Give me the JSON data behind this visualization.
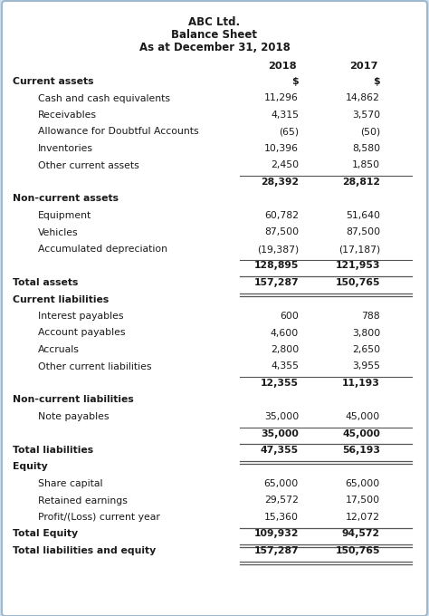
{
  "title_lines": [
    "ABC Ltd.",
    "Balance Sheet",
    "As at December 31, 2018"
  ],
  "rows": [
    {
      "label": "Current assets",
      "val2018": "",
      "val2017": "",
      "style": "section_header",
      "indent": 0
    },
    {
      "label": "Cash and cash equivalents",
      "val2018": "11,296",
      "val2017": "14,862",
      "style": "normal",
      "indent": 1
    },
    {
      "label": "Receivables",
      "val2018": "4,315",
      "val2017": "3,570",
      "style": "normal",
      "indent": 1
    },
    {
      "label": "Allowance for Doubtful Accounts",
      "val2018": "(65)",
      "val2017": "(50)",
      "style": "normal",
      "indent": 1
    },
    {
      "label": "Inventories",
      "val2018": "10,396",
      "val2017": "8,580",
      "style": "normal",
      "indent": 1
    },
    {
      "label": "Other current assets",
      "val2018": "2,450",
      "val2017": "1,850",
      "style": "normal",
      "indent": 1
    },
    {
      "label": "",
      "val2018": "28,392",
      "val2017": "28,812",
      "style": "subtotal",
      "indent": 0
    },
    {
      "label": "Non-current assets",
      "val2018": "",
      "val2017": "",
      "style": "section_header",
      "indent": 0
    },
    {
      "label": "Equipment",
      "val2018": "60,782",
      "val2017": "51,640",
      "style": "normal",
      "indent": 1
    },
    {
      "label": "Vehicles",
      "val2018": "87,500",
      "val2017": "87,500",
      "style": "normal",
      "indent": 1
    },
    {
      "label": "Accumulated depreciation",
      "val2018": "(19,387)",
      "val2017": "(17,187)",
      "style": "normal",
      "indent": 1
    },
    {
      "label": "",
      "val2018": "128,895",
      "val2017": "121,953",
      "style": "subtotal",
      "indent": 0
    },
    {
      "label": "Total assets",
      "val2018": "157,287",
      "val2017": "150,765",
      "style": "total",
      "indent": 0
    },
    {
      "label": "Current liabilities",
      "val2018": "",
      "val2017": "",
      "style": "section_header",
      "indent": 0
    },
    {
      "label": "Interest payables",
      "val2018": "600",
      "val2017": "788",
      "style": "normal",
      "indent": 1
    },
    {
      "label": "Account payables",
      "val2018": "4,600",
      "val2017": "3,800",
      "style": "normal",
      "indent": 1
    },
    {
      "label": "Accruals",
      "val2018": "2,800",
      "val2017": "2,650",
      "style": "normal",
      "indent": 1
    },
    {
      "label": "Other current liabilities",
      "val2018": "4,355",
      "val2017": "3,955",
      "style": "normal",
      "indent": 1
    },
    {
      "label": "",
      "val2018": "12,355",
      "val2017": "11,193",
      "style": "subtotal",
      "indent": 0
    },
    {
      "label": "Non-current liabilities",
      "val2018": "",
      "val2017": "",
      "style": "section_header",
      "indent": 0
    },
    {
      "label": "Note payables",
      "val2018": "35,000",
      "val2017": "45,000",
      "style": "normal",
      "indent": 1
    },
    {
      "label": "",
      "val2018": "35,000",
      "val2017": "45,000",
      "style": "subtotal",
      "indent": 0
    },
    {
      "label": "Total liabilities",
      "val2018": "47,355",
      "val2017": "56,193",
      "style": "total",
      "indent": 0
    },
    {
      "label": "Equity",
      "val2018": "",
      "val2017": "",
      "style": "section_header",
      "indent": 0
    },
    {
      "label": "Share capital",
      "val2018": "65,000",
      "val2017": "65,000",
      "style": "normal",
      "indent": 1
    },
    {
      "label": "Retained earnings",
      "val2018": "29,572",
      "val2017": "17,500",
      "style": "normal",
      "indent": 1
    },
    {
      "label": "Profit/(Loss) current year",
      "val2018": "15,360",
      "val2017": "12,072",
      "style": "normal",
      "indent": 1
    },
    {
      "label": "Total Equity",
      "val2018": "109,932",
      "val2017": "94,572",
      "style": "total",
      "indent": 0
    },
    {
      "label": "Total liabilities and equity",
      "val2018": "157,287",
      "val2017": "150,765",
      "style": "grand_total",
      "indent": 0
    }
  ],
  "bg_color": "#cde0f0",
  "table_bg": "#ffffff",
  "text_color": "#1a1a1a",
  "line_color": "#555555",
  "border_color": "#a0b8cc"
}
